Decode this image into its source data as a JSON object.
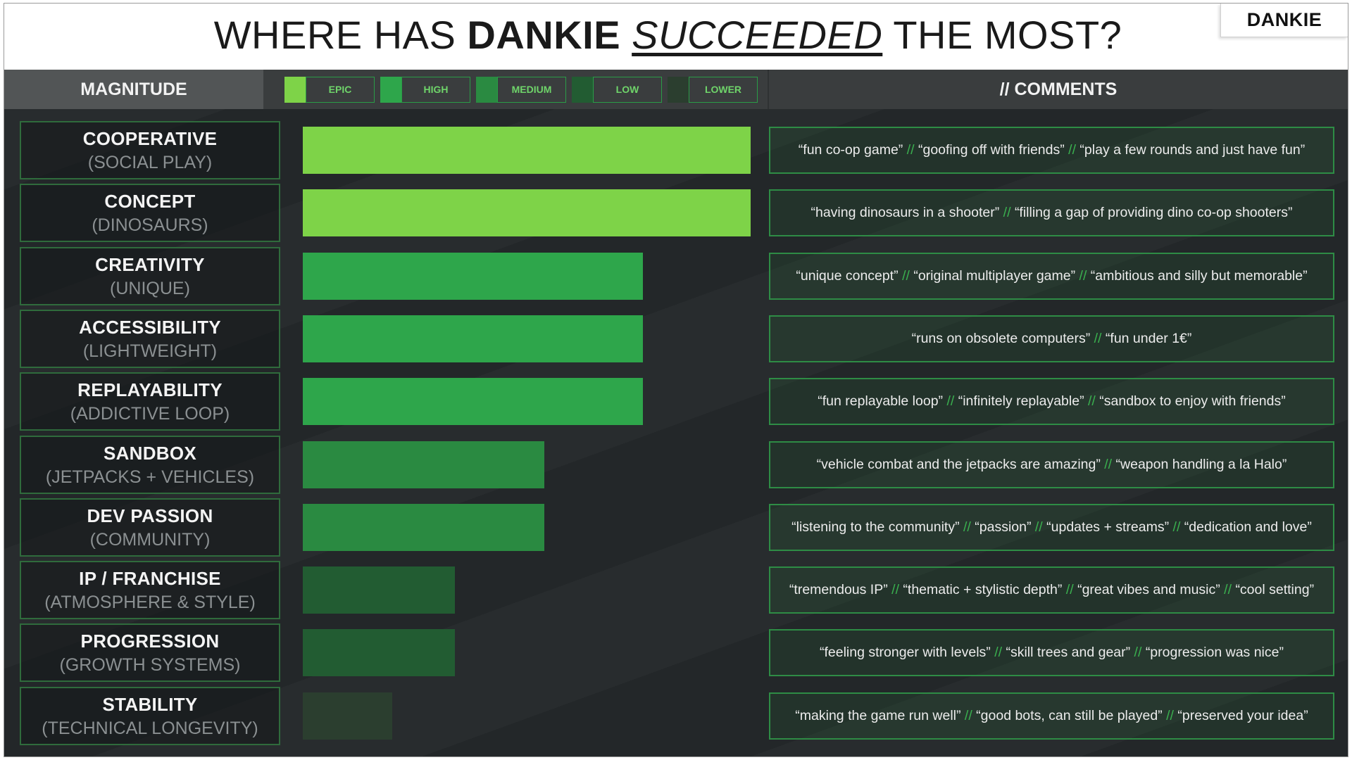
{
  "title": {
    "part1": "WHERE HAS",
    "part2": "DANKIE",
    "part3": "SUCCEEDED",
    "part4": "THE MOST?"
  },
  "logo": "DANKIE",
  "headers": {
    "magnitude": "MAGNITUDE",
    "comments": "// COMMENTS"
  },
  "legend": [
    {
      "label": "EPIC",
      "color": "#7ed348"
    },
    {
      "label": "HIGH",
      "color": "#2ea64b"
    },
    {
      "label": "MEDIUM",
      "color": "#2a8a41"
    },
    {
      "label": "LOW",
      "color": "#225c32"
    },
    {
      "label": "LOWER",
      "color": "#2b3e2f"
    }
  ],
  "separator": "//",
  "chart_data": {
    "type": "bar",
    "orientation": "horizontal",
    "grid": false,
    "xlim": [
      0,
      100
    ],
    "categories": [
      "COOPERATIVE",
      "CONCEPT",
      "CREATIVITY",
      "ACCESSIBILITY",
      "REPLAYABILITY",
      "SANDBOX",
      "DEV PASSION",
      "IP / FRANCHISE",
      "PROGRESSION",
      "STABILITY"
    ],
    "subtitles": [
      "(SOCIAL PLAY)",
      "(DINOSAURS)",
      "(UNIQUE)",
      "(LIGHTWEIGHT)",
      "(ADDICTIVE LOOP)",
      "(JETPACKS + VEHICLES)",
      "(COMMUNITY)",
      "(ATMOSPHERE & STYLE)",
      "(GROWTH SYSTEMS)",
      "(TECHNICAL LONGEVITY)"
    ],
    "values": [
      100,
      100,
      76,
      76,
      76,
      54,
      54,
      34,
      34,
      20
    ],
    "magnitude": [
      "EPIC",
      "EPIC",
      "HIGH",
      "HIGH",
      "HIGH",
      "MEDIUM",
      "MEDIUM",
      "LOW",
      "LOW",
      "LOWER"
    ]
  },
  "comments": [
    [
      "“fun co-op game”",
      "“goofing off with friends”",
      "“play a few rounds and just have fun”"
    ],
    [
      "“having dinosaurs in a shooter”",
      "“filling a gap of providing dino co-op shooters”"
    ],
    [
      "“unique concept”",
      "“original multiplayer game”",
      "“ambitious and silly but memorable”"
    ],
    [
      "“runs on obsolete computers”",
      "“fun under 1€”"
    ],
    [
      "“fun replayable loop”",
      "“infinitely replayable”",
      "“sandbox to enjoy with friends”"
    ],
    [
      "“vehicle combat and the jetpacks are amazing”",
      "“weapon handling a la Halo”"
    ],
    [
      "“listening to the community”",
      "“passion”",
      "“updates + streams”",
      "“dedication and love”"
    ],
    [
      "“tremendous IP”",
      "“thematic + stylistic depth”",
      "“great vibes and music”",
      "“cool setting”"
    ],
    [
      "“feeling stronger with levels”",
      "“skill trees and gear”",
      "“progression was nice”"
    ],
    [
      "“making the game run well”",
      "“good bots, can still be played”",
      "“preserved your idea”"
    ]
  ]
}
